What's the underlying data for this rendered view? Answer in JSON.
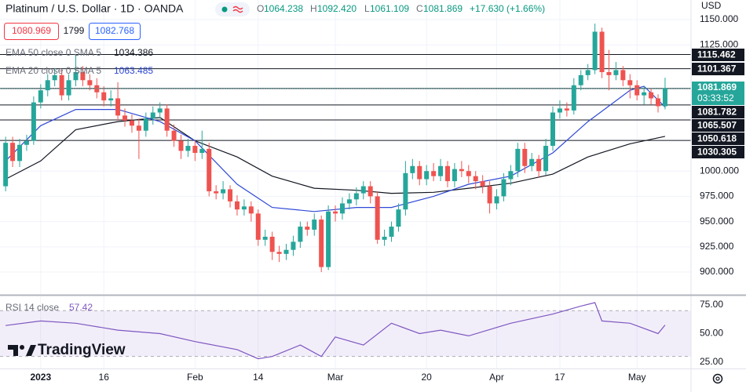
{
  "chart_data": {
    "type": "candlestick",
    "title": "Platinum / U.S. Dollar · 1D · OANDA",
    "legend_keys": [
      "O",
      "H",
      "L",
      "C"
    ],
    "legend_values": [
      "1064.238",
      "1092.420",
      "1061.109",
      "1081.869"
    ],
    "change": "+17.630 (+1.66%)",
    "quote_boxes": [
      "1080.969",
      "1799",
      "1082.768"
    ],
    "currency": "USD",
    "brand": "TradingView",
    "up_color": "#26a69a",
    "down_color": "#ef5350",
    "grid": true,
    "xlim": [
      -0.8,
      97.7
    ],
    "ylim": [
      878.3,
      1169.4
    ],
    "yticks": [
      {
        "value": 1150,
        "label": "1150.000"
      },
      {
        "value": 1125,
        "label": "1125.000"
      },
      {
        "value": 1000,
        "label": "1000.000"
      },
      {
        "value": 975,
        "label": "975.000"
      },
      {
        "value": 950,
        "label": "950.000"
      },
      {
        "value": 925,
        "label": "925.000"
      },
      {
        "value": 900,
        "label": "900.000"
      }
    ],
    "xticks": [
      {
        "value": 5,
        "label": "2023"
      },
      {
        "value": 14,
        "label": "16"
      },
      {
        "value": 27,
        "label": "Feb"
      },
      {
        "value": 36,
        "label": "14"
      },
      {
        "value": 47,
        "label": "Mar"
      },
      {
        "value": 60,
        "label": "20"
      },
      {
        "value": 70,
        "label": "Apr"
      },
      {
        "value": 79,
        "label": "17"
      },
      {
        "value": 90,
        "label": "May"
      }
    ],
    "ohlc": [
      [
        985,
        1034,
        980,
        1028
      ],
      [
        1028,
        1034,
        1004,
        1010
      ],
      [
        1010,
        1032,
        1004,
        1026
      ],
      [
        1026,
        1036,
        1020,
        1030
      ],
      [
        1030,
        1074,
        1026,
        1068
      ],
      [
        1068,
        1086,
        1062,
        1080
      ],
      [
        1080,
        1096,
        1074,
        1090
      ],
      [
        1090,
        1102,
        1084,
        1095
      ],
      [
        1095,
        1100,
        1070,
        1075
      ],
      [
        1075,
        1096,
        1070,
        1090
      ],
      [
        1090,
        1116,
        1084,
        1098
      ],
      [
        1098,
        1104,
        1084,
        1090
      ],
      [
        1090,
        1096,
        1080,
        1085
      ],
      [
        1085,
        1092,
        1072,
        1078
      ],
      [
        1078,
        1084,
        1064,
        1070
      ],
      [
        1070,
        1080,
        1064,
        1072
      ],
      [
        1072,
        1088,
        1050,
        1055
      ],
      [
        1055,
        1062,
        1044,
        1050
      ],
      [
        1050,
        1056,
        1038,
        1045
      ],
      [
        1045,
        1052,
        1012,
        1040
      ],
      [
        1040,
        1058,
        1034,
        1052
      ],
      [
        1052,
        1064,
        1046,
        1058
      ],
      [
        1058,
        1068,
        1052,
        1062
      ],
      [
        1062,
        1066,
        1034,
        1040
      ],
      [
        1040,
        1046,
        1024,
        1030
      ],
      [
        1030,
        1036,
        1012,
        1020
      ],
      [
        1020,
        1032,
        1014,
        1025
      ],
      [
        1025,
        1030,
        1010,
        1018
      ],
      [
        1018,
        1040,
        1012,
        1022
      ],
      [
        1022,
        1028,
        975,
        980
      ],
      [
        980,
        986,
        972,
        978
      ],
      [
        978,
        990,
        972,
        982
      ],
      [
        982,
        986,
        964,
        970
      ],
      [
        970,
        976,
        956,
        962
      ],
      [
        962,
        972,
        956,
        965
      ],
      [
        965,
        970,
        950,
        958
      ],
      [
        958,
        962,
        926,
        932
      ],
      [
        932,
        942,
        926,
        935
      ],
      [
        935,
        940,
        912,
        920
      ],
      [
        920,
        926,
        910,
        918
      ],
      [
        918,
        928,
        912,
        922
      ],
      [
        922,
        936,
        916,
        930
      ],
      [
        930,
        950,
        924,
        945
      ],
      [
        945,
        950,
        936,
        942
      ],
      [
        942,
        958,
        936,
        952
      ],
      [
        952,
        956,
        900,
        905
      ],
      [
        905,
        966,
        902,
        960
      ],
      [
        960,
        966,
        950,
        958
      ],
      [
        958,
        974,
        952,
        968
      ],
      [
        968,
        978,
        962,
        972
      ],
      [
        972,
        984,
        966,
        978
      ],
      [
        978,
        990,
        972,
        985
      ],
      [
        985,
        990,
        968,
        975
      ],
      [
        975,
        980,
        928,
        932
      ],
      [
        932,
        942,
        926,
        935
      ],
      [
        935,
        950,
        930,
        945
      ],
      [
        945,
        968,
        940,
        962
      ],
      [
        962,
        1010,
        956,
        998
      ],
      [
        998,
        1012,
        992,
        1005
      ],
      [
        1005,
        1010,
        986,
        992
      ],
      [
        992,
        1006,
        986,
        1000
      ],
      [
        1000,
        1008,
        990,
        995
      ],
      [
        995,
        1012,
        990,
        1005
      ],
      [
        1005,
        1010,
        984,
        990
      ],
      [
        990,
        1008,
        984,
        1002
      ],
      [
        1002,
        1010,
        994,
        1000
      ],
      [
        1000,
        1006,
        988,
        995
      ],
      [
        995,
        1000,
        982,
        990
      ],
      [
        990,
        996,
        978,
        985
      ],
      [
        985,
        990,
        958,
        968
      ],
      [
        968,
        982,
        962,
        975
      ],
      [
        975,
        998,
        970,
        992
      ],
      [
        992,
        1006,
        986,
        1000
      ],
      [
        1000,
        1028,
        994,
        1022
      ],
      [
        1022,
        1028,
        998,
        1005
      ],
      [
        1005,
        1018,
        1000,
        1012
      ],
      [
        1012,
        1016,
        994,
        1000
      ],
      [
        1000,
        1032,
        996,
        1025
      ],
      [
        1025,
        1064,
        1020,
        1058
      ],
      [
        1058,
        1070,
        1052,
        1062
      ],
      [
        1062,
        1068,
        1054,
        1060
      ],
      [
        1060,
        1092,
        1056,
        1085
      ],
      [
        1085,
        1100,
        1080,
        1095
      ],
      [
        1095,
        1106,
        1090,
        1100
      ],
      [
        1100,
        1146,
        1096,
        1138
      ],
      [
        1138,
        1142,
        1092,
        1098
      ],
      [
        1098,
        1120,
        1080,
        1095
      ],
      [
        1095,
        1108,
        1090,
        1100
      ],
      [
        1100,
        1104,
        1084,
        1090
      ],
      [
        1090,
        1096,
        1072,
        1085
      ],
      [
        1085,
        1090,
        1070,
        1075
      ],
      [
        1075,
        1084,
        1066,
        1078
      ],
      [
        1078,
        1082,
        1066,
        1072
      ],
      [
        1072,
        1076,
        1058,
        1064.238
      ],
      [
        1064.238,
        1092.42,
        1061.109,
        1081.869
      ]
    ],
    "series": [
      {
        "name": "EMA 50 close 0 SMA 5",
        "color": "#131722",
        "x": [
          0,
          5,
          10,
          16,
          22,
          27,
          33,
          38,
          44,
          50,
          55,
          61,
          66,
          72,
          78,
          83,
          89,
          94
        ],
        "values": [
          992,
          1010,
          1041,
          1049,
          1053,
          1030,
          1014,
          995,
          983,
          981,
          978,
          979,
          983,
          988,
          997,
          1014,
          1027,
          1034.386
        ]
      },
      {
        "name": "EMA 20 close 0 SMA 5",
        "color": "#2e49d6",
        "x": [
          0,
          5,
          10,
          16,
          22,
          27,
          33,
          38,
          44,
          50,
          55,
          61,
          66,
          72,
          78,
          83,
          89,
          91,
          94
        ],
        "values": [
          1010,
          1045,
          1061,
          1061,
          1049,
          1030,
          987,
          964,
          960,
          964,
          964,
          975,
          987,
          995,
          1018,
          1049,
          1080,
          1084,
          1063.485
        ]
      }
    ],
    "levels": [
      1115.462,
      1101.367,
      1081.782,
      1065.507,
      1050.618,
      1030.305
    ],
    "last_price": 1081.869,
    "countdown": "03:33:52",
    "rsi": {
      "name": "RSI 14 close",
      "color": "#7e57c2",
      "ylim": [
        19.5,
        82.5
      ],
      "yticks": [
        {
          "value": 75,
          "label": "75.00"
        },
        {
          "value": 50,
          "label": "50.00"
        },
        {
          "value": 25,
          "label": "25.00"
        }
      ],
      "bands": [
        30,
        70
      ],
      "x": [
        0,
        5,
        10,
        16,
        22,
        27,
        33,
        36,
        38,
        42,
        45,
        47,
        51,
        55,
        59,
        62,
        66,
        72,
        78,
        82,
        84,
        85,
        89,
        93,
        94
      ],
      "values": [
        57,
        61,
        59,
        53,
        50,
        43,
        36,
        28,
        30,
        40,
        30,
        47,
        40,
        59,
        50,
        53,
        48,
        59,
        67,
        74,
        77,
        61,
        59,
        50,
        57.42
      ]
    }
  }
}
